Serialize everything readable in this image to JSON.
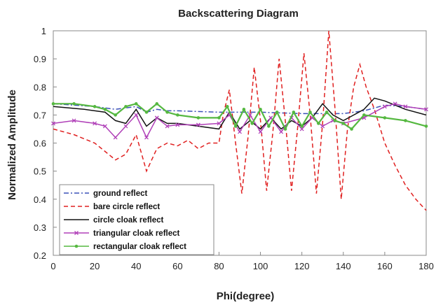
{
  "chart_data": {
    "type": "line",
    "title": "Backscattering Diagram",
    "xlabel": "Phi(degree)",
    "ylabel": "Normalized Amplitude",
    "xlim": [
      0,
      180
    ],
    "ylim": [
      0.2,
      1.0
    ],
    "x_ticks": [
      0,
      20,
      40,
      60,
      80,
      100,
      120,
      140,
      160,
      180
    ],
    "y_ticks": [
      0.2,
      0.3,
      0.4,
      0.5,
      0.6,
      0.7,
      0.8,
      0.9,
      1.0
    ],
    "x_tick_labels": [
      "0",
      "20",
      "40",
      "60",
      "80",
      "100",
      "120",
      "140",
      "160",
      "180"
    ],
    "y_tick_labels": [
      "0.2",
      "0.3",
      "0.4",
      "0.5",
      "0.6",
      "0.7",
      "0.8",
      "0.9",
      "1"
    ],
    "legend_position": "bottom-left",
    "grid": false,
    "series": [
      {
        "name": "ground reflect",
        "color": "#3a50b8",
        "style": "dashdot",
        "marker": "none",
        "x": [
          0,
          20,
          30,
          40,
          45,
          50,
          55,
          60,
          80,
          100,
          120,
          140,
          150,
          160,
          170,
          180
        ],
        "y": [
          0.74,
          0.73,
          0.72,
          0.73,
          0.71,
          0.72,
          0.715,
          0.715,
          0.71,
          0.71,
          0.705,
          0.705,
          0.715,
          0.735,
          0.73,
          0.72
        ]
      },
      {
        "name": "bare circle reflect",
        "color": "#e02020",
        "style": "dashed",
        "marker": "none",
        "x": [
          0,
          10,
          20,
          25,
          30,
          35,
          40,
          45,
          50,
          55,
          60,
          65,
          70,
          75,
          80,
          82,
          85,
          88,
          91,
          94,
          97,
          100,
          103,
          106,
          109,
          112,
          115,
          118,
          121,
          124,
          127,
          130,
          133,
          136,
          139,
          142,
          145,
          148,
          151,
          155,
          160,
          165,
          170,
          175,
          180
        ],
        "y": [
          0.65,
          0.63,
          0.6,
          0.57,
          0.54,
          0.56,
          0.63,
          0.5,
          0.58,
          0.6,
          0.59,
          0.61,
          0.58,
          0.6,
          0.6,
          0.7,
          0.79,
          0.6,
          0.42,
          0.62,
          0.87,
          0.68,
          0.43,
          0.64,
          0.9,
          0.68,
          0.43,
          0.66,
          0.92,
          0.7,
          0.42,
          0.67,
          1.0,
          0.72,
          0.4,
          0.65,
          0.8,
          0.88,
          0.8,
          0.72,
          0.6,
          0.52,
          0.45,
          0.4,
          0.36
        ]
      },
      {
        "name": "circle cloak reflect",
        "color": "#111111",
        "style": "solid",
        "marker": "none",
        "x": [
          0,
          15,
          25,
          30,
          35,
          40,
          45,
          50,
          55,
          60,
          70,
          80,
          85,
          90,
          95,
          100,
          105,
          110,
          115,
          120,
          125,
          130,
          135,
          140,
          145,
          150,
          155,
          160,
          170,
          180
        ],
        "y": [
          0.73,
          0.72,
          0.71,
          0.68,
          0.67,
          0.72,
          0.66,
          0.69,
          0.67,
          0.67,
          0.66,
          0.65,
          0.71,
          0.65,
          0.68,
          0.65,
          0.69,
          0.65,
          0.68,
          0.66,
          0.69,
          0.74,
          0.7,
          0.68,
          0.7,
          0.72,
          0.76,
          0.75,
          0.72,
          0.7
        ]
      },
      {
        "name": "triangular cloak reflect",
        "color": "#b040b8",
        "style": "solid",
        "marker": "x",
        "x": [
          0,
          10,
          20,
          25,
          30,
          35,
          40,
          45,
          50,
          55,
          60,
          70,
          80,
          85,
          90,
          95,
          100,
          105,
          110,
          115,
          120,
          125,
          130,
          135,
          140,
          150,
          160,
          165,
          170,
          180
        ],
        "y": [
          0.67,
          0.68,
          0.67,
          0.66,
          0.62,
          0.66,
          0.7,
          0.62,
          0.69,
          0.66,
          0.665,
          0.665,
          0.67,
          0.7,
          0.64,
          0.7,
          0.64,
          0.69,
          0.64,
          0.69,
          0.65,
          0.69,
          0.66,
          0.68,
          0.67,
          0.69,
          0.73,
          0.74,
          0.73,
          0.72
        ]
      },
      {
        "name": "rectangular cloak reflect",
        "color": "#55b840",
        "style": "solid",
        "marker": "dot",
        "x": [
          0,
          10,
          20,
          25,
          30,
          35,
          40,
          45,
          50,
          55,
          60,
          70,
          80,
          84,
          88,
          92,
          96,
          100,
          104,
          108,
          112,
          116,
          120,
          124,
          128,
          132,
          136,
          140,
          144,
          150,
          160,
          170,
          180
        ],
        "y": [
          0.74,
          0.74,
          0.73,
          0.72,
          0.7,
          0.73,
          0.74,
          0.71,
          0.74,
          0.71,
          0.7,
          0.69,
          0.69,
          0.73,
          0.66,
          0.72,
          0.67,
          0.72,
          0.66,
          0.71,
          0.65,
          0.71,
          0.66,
          0.71,
          0.67,
          0.71,
          0.68,
          0.67,
          0.65,
          0.7,
          0.69,
          0.68,
          0.66
        ]
      }
    ]
  }
}
